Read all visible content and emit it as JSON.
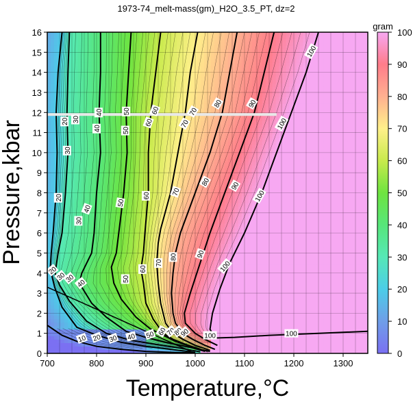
{
  "chart_data": {
    "type": "heatmap",
    "title": "1973-74_melt-mass(gm)_H2O_3.5_PT, dz=2",
    "xlabel": "Temperature,°C",
    "ylabel": "Pressure,kbar",
    "xlim": [
      700,
      1350
    ],
    "ylim": [
      0,
      16
    ],
    "xticks": [
      700,
      800,
      900,
      1000,
      1100,
      1200,
      1300
    ],
    "yticks": [
      0,
      1,
      2,
      3,
      4,
      5,
      6,
      7,
      8,
      9,
      10,
      11,
      12,
      13,
      14,
      15,
      16
    ],
    "grid": true,
    "colorbar": {
      "label": "gram",
      "range": [
        0,
        100
      ],
      "ticks": [
        0,
        10,
        20,
        30,
        40,
        50,
        60,
        70,
        80,
        90,
        100
      ]
    },
    "contour_interval": 2,
    "labeled_contours": [
      {
        "level": 10,
        "points": [
          [
            700,
            1.4
          ],
          [
            730,
            0.9
          ],
          [
            760,
            0.6
          ],
          [
            800,
            0.35
          ],
          [
            850,
            0.2
          ],
          [
            900,
            0.1
          ],
          [
            950,
            0.05
          ],
          [
            1000,
            0.02
          ]
        ]
      },
      {
        "level": 20,
        "points": [
          [
            730,
            16
          ],
          [
            722,
            14
          ],
          [
            718,
            12
          ],
          [
            720,
            10
          ],
          [
            718,
            8
          ],
          [
            712,
            6
          ],
          [
            708,
            5
          ],
          [
            706,
            4.2
          ],
          [
            715,
            3.3
          ],
          [
            730,
            2.3
          ],
          [
            760,
            1.3
          ],
          [
            800,
            0.9
          ],
          [
            850,
            0.55
          ],
          [
            900,
            0.35
          ],
          [
            950,
            0.2
          ],
          [
            1000,
            0.05
          ]
        ]
      },
      {
        "level": 30,
        "points": [
          [
            745,
            16
          ],
          [
            742,
            14
          ],
          [
            740,
            12
          ],
          [
            742,
            10
          ],
          [
            737,
            8
          ],
          [
            730,
            6
          ],
          [
            722,
            5
          ],
          [
            716,
            4.0
          ],
          [
            725,
            3.4
          ],
          [
            745,
            2.6
          ],
          [
            780,
            1.6
          ],
          [
            820,
            1.0
          ],
          [
            870,
            0.65
          ],
          [
            920,
            0.45
          ],
          [
            960,
            0.3
          ],
          [
            1010,
            0.08
          ]
        ]
      },
      {
        "level": 40,
        "points": [
          [
            808,
            16
          ],
          [
            808,
            14
          ],
          [
            805,
            12
          ],
          [
            808,
            10
          ],
          [
            800,
            8
          ],
          [
            795,
            6
          ],
          [
            790,
            5
          ],
          [
            770,
            4.0
          ],
          [
            765,
            3.5
          ],
          [
            790,
            2.5
          ],
          [
            820,
            1.8
          ],
          [
            860,
            1.1
          ],
          [
            900,
            0.8
          ],
          [
            940,
            0.55
          ],
          [
            990,
            0.3
          ],
          [
            1020,
            0.1
          ]
        ]
      },
      {
        "level": 50,
        "points": [
          [
            870,
            16
          ],
          [
            865,
            14
          ],
          [
            860,
            12
          ],
          [
            862,
            10
          ],
          [
            855,
            8
          ],
          [
            845,
            6
          ],
          [
            840,
            5
          ],
          [
            830,
            4.3
          ],
          [
            835,
            3.5
          ],
          [
            850,
            2.7
          ],
          [
            880,
            1.8
          ],
          [
            910,
            1.2
          ],
          [
            935,
            0.9
          ],
          [
            960,
            0.6
          ],
          [
            990,
            0.35
          ],
          [
            1025,
            0.1
          ]
        ]
      },
      {
        "level": 60,
        "points": [
          [
            930,
            16
          ],
          [
            920,
            14
          ],
          [
            910,
            12
          ],
          [
            905,
            10
          ],
          [
            905,
            8
          ],
          [
            898,
            6
          ],
          [
            895,
            5
          ],
          [
            890,
            4.2
          ],
          [
            895,
            3.5
          ],
          [
            900,
            2.5
          ],
          [
            915,
            1.7
          ],
          [
            935,
            1.0
          ],
          [
            955,
            0.7
          ],
          [
            980,
            0.45
          ],
          [
            1010,
            0.2
          ],
          [
            1030,
            0.1
          ]
        ]
      },
      {
        "level": 70,
        "points": [
          [
            1005,
            16
          ],
          [
            990,
            14
          ],
          [
            980,
            12
          ],
          [
            965,
            10
          ],
          [
            950,
            8
          ],
          [
            930,
            6.2
          ],
          [
            925,
            5.5
          ],
          [
            922,
            4.5
          ],
          [
            925,
            3.5
          ],
          [
            930,
            2.5
          ],
          [
            940,
            1.5
          ],
          [
            955,
            1.0
          ],
          [
            975,
            0.7
          ],
          [
            1000,
            0.4
          ],
          [
            1030,
            0.15
          ]
        ]
      },
      {
        "level": 80,
        "points": [
          [
            1085,
            16
          ],
          [
            1070,
            14
          ],
          [
            1055,
            12
          ],
          [
            1030,
            10
          ],
          [
            1000,
            8
          ],
          [
            970,
            6
          ],
          [
            960,
            5
          ],
          [
            955,
            4
          ],
          [
            952,
            3
          ],
          [
            955,
            2
          ],
          [
            960,
            1.5
          ],
          [
            975,
            1.0
          ],
          [
            995,
            0.7
          ],
          [
            1020,
            0.4
          ],
          [
            1040,
            0.2
          ]
        ]
      },
      {
        "level": 90,
        "points": [
          [
            1160,
            16
          ],
          [
            1140,
            14
          ],
          [
            1120,
            12
          ],
          [
            1090,
            10
          ],
          [
            1060,
            8
          ],
          [
            1030,
            6
          ],
          [
            1010,
            4.5
          ],
          [
            990,
            3
          ],
          [
            978,
            2
          ],
          [
            980,
            1.5
          ],
          [
            1000,
            1.0
          ],
          [
            1020,
            0.7
          ],
          [
            1045,
            0.4
          ]
        ]
      },
      {
        "level": 100,
        "points": [
          [
            1250,
            16
          ],
          [
            1225,
            14
          ],
          [
            1195,
            12
          ],
          [
            1165,
            10
          ],
          [
            1135,
            8
          ],
          [
            1100,
            6
          ],
          [
            1070,
            4.5
          ],
          [
            1050,
            3.2
          ],
          [
            1035,
            2.0
          ],
          [
            1030,
            1.2
          ],
          [
            1040,
            0.8
          ]
        ]
      },
      {
        "level": 100,
        "points": [
          [
            1020,
            0.75
          ],
          [
            1080,
            0.8
          ],
          [
            1150,
            0.9
          ],
          [
            1250,
            1.0
          ],
          [
            1350,
            1.1
          ]
        ]
      }
    ],
    "contour_labels": [
      {
        "text": "10",
        "t": 770,
        "p": 0.75,
        "angle": -20
      },
      {
        "text": "20",
        "t": 710,
        "p": 4.15,
        "angle": -40
      },
      {
        "text": "30",
        "t": 727,
        "p": 3.85,
        "angle": -40
      },
      {
        "text": "20",
        "t": 735,
        "p": 11.55,
        "angle": -90
      },
      {
        "text": "20",
        "t": 722,
        "p": 7.75,
        "angle": -90
      },
      {
        "text": "30",
        "t": 740,
        "p": 10.1,
        "angle": -90
      },
      {
        "text": "30",
        "t": 745,
        "p": 3.75,
        "angle": -40
      },
      {
        "text": "30",
        "t": 833,
        "p": 0.75,
        "angle": -20
      },
      {
        "text": "20",
        "t": 800,
        "p": 0.8,
        "angle": -20
      },
      {
        "text": "30",
        "t": 757,
        "p": 11.65,
        "angle": -90
      },
      {
        "text": "30",
        "t": 763,
        "p": 6.6,
        "angle": -90
      },
      {
        "text": "40",
        "t": 804,
        "p": 12.0,
        "angle": -90
      },
      {
        "text": "40",
        "t": 800,
        "p": 11.2,
        "angle": -90
      },
      {
        "text": "40",
        "t": 780,
        "p": 7.2,
        "angle": -70
      },
      {
        "text": "40",
        "t": 768,
        "p": 3.5,
        "angle": -40
      },
      {
        "text": "40",
        "t": 870,
        "p": 0.85,
        "angle": -15
      },
      {
        "text": "50",
        "t": 860,
        "p": 12.05,
        "angle": -90
      },
      {
        "text": "50",
        "t": 858,
        "p": 11.1,
        "angle": -90
      },
      {
        "text": "50",
        "t": 848,
        "p": 7.5,
        "angle": -80
      },
      {
        "text": "50",
        "t": 858,
        "p": 3.7,
        "angle": -90
      },
      {
        "text": "50",
        "t": 908,
        "p": 0.95,
        "angle": -20
      },
      {
        "text": "60",
        "t": 918,
        "p": 12.1,
        "angle": -70
      },
      {
        "text": "60",
        "t": 905,
        "p": 11.5,
        "angle": -70
      },
      {
        "text": "60",
        "t": 900,
        "p": 7.85,
        "angle": -90
      },
      {
        "text": "60",
        "t": 893,
        "p": 4.2,
        "angle": -90
      },
      {
        "text": "60",
        "t": 932,
        "p": 1.1,
        "angle": -60
      },
      {
        "text": "70",
        "t": 995,
        "p": 12.05,
        "angle": -60
      },
      {
        "text": "70",
        "t": 978,
        "p": 11.45,
        "angle": -60
      },
      {
        "text": "70",
        "t": 960,
        "p": 8.05,
        "angle": -70
      },
      {
        "text": "70",
        "t": 925,
        "p": 4.5,
        "angle": -90
      },
      {
        "text": "70",
        "t": 950,
        "p": 1.1,
        "angle": -40
      },
      {
        "text": "80",
        "t": 1045,
        "p": 12.45,
        "angle": -60
      },
      {
        "text": "80",
        "t": 1020,
        "p": 8.55,
        "angle": -60
      },
      {
        "text": "80",
        "t": 955,
        "p": 4.8,
        "angle": -90
      },
      {
        "text": "80",
        "t": 965,
        "p": 1.1,
        "angle": -40
      },
      {
        "text": "90",
        "t": 1115,
        "p": 12.45,
        "angle": -60
      },
      {
        "text": "90",
        "t": 1080,
        "p": 8.35,
        "angle": -60
      },
      {
        "text": "90",
        "t": 1010,
        "p": 4.95,
        "angle": -70
      },
      {
        "text": "90",
        "t": 978,
        "p": 1.05,
        "angle": -40
      },
      {
        "text": "100",
        "t": 1235,
        "p": 15.05,
        "angle": -60
      },
      {
        "text": "100",
        "t": 1175,
        "p": 11.45,
        "angle": -60
      },
      {
        "text": "100",
        "t": 1130,
        "p": 7.85,
        "angle": -60
      },
      {
        "text": "100",
        "t": 1060,
        "p": 4.35,
        "angle": -50
      },
      {
        "text": "100",
        "t": 1030,
        "p": 0.9,
        "angle": 0
      },
      {
        "text": "100",
        "t": 1195,
        "p": 1.0,
        "angle": 0
      }
    ],
    "phase_boundaries": [
      {
        "from": [
          700,
          4.2
        ],
        "to": [
          700,
          1.5
        ]
      },
      {
        "from": [
          700,
          3.3
        ],
        "to": [
          1000,
          0
        ]
      }
    ],
    "highlight_line": {
      "p": 11.9,
      "t_range": [
        700,
        1165
      ]
    }
  }
}
